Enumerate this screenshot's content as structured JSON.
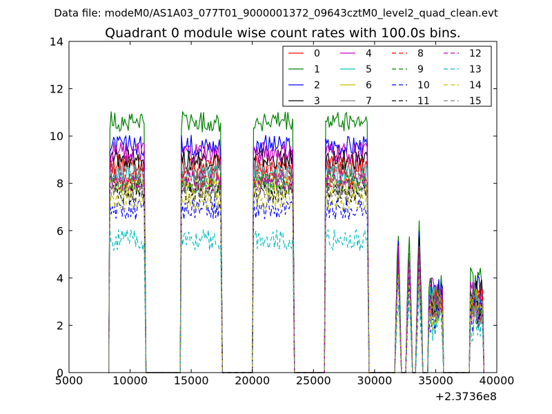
{
  "suptitle": "Data file: modeM0/AS1A03_077T01_9000001372_09643cztM0_level2_quad_clean.evt",
  "chart_data": {
    "type": "line",
    "title": "Quadrant 0 module wise count rates with 100.0s bins.",
    "xlabel": "",
    "ylabel": "",
    "x_offset_label": "+2.3736e8",
    "xlim": [
      5000,
      40000
    ],
    "ylim": [
      0,
      14
    ],
    "xticks": [
      5000,
      10000,
      15000,
      20000,
      25000,
      30000,
      35000,
      40000
    ],
    "xtick_labels": [
      "5000",
      "10000",
      "15000",
      "20000",
      "25000",
      "30000",
      "35000",
      "40000"
    ],
    "yticks": [
      0,
      2,
      4,
      6,
      8,
      10,
      12,
      14
    ],
    "ytick_labels": [
      "0",
      "2",
      "4",
      "6",
      "8",
      "10",
      "12",
      "14"
    ],
    "grid": false,
    "legend_position": "top-right",
    "legend_columns": 4,
    "observation_segments_x": [
      [
        8350,
        11200
      ],
      [
        14200,
        17450
      ],
      [
        20100,
        23350
      ],
      [
        26000,
        29450
      ],
      [
        31750,
        32100
      ],
      [
        32650,
        33000
      ],
      [
        33450,
        33850
      ],
      [
        34450,
        35550
      ],
      [
        37850,
        38850
      ]
    ],
    "series": [
      {
        "name": "0",
        "level": 8.8,
        "color": "#ff0000",
        "dashed": false
      },
      {
        "name": "1",
        "level": 10.6,
        "color": "#008000",
        "dashed": false
      },
      {
        "name": "2",
        "level": 9.6,
        "color": "#0000ff",
        "dashed": false
      },
      {
        "name": "3",
        "level": 9.0,
        "color": "#000000",
        "dashed": false
      },
      {
        "name": "4",
        "level": 9.3,
        "color": "#bf00bf",
        "dashed": false
      },
      {
        "name": "5",
        "level": 8.3,
        "color": "#00bfbf",
        "dashed": false
      },
      {
        "name": "6",
        "level": 7.9,
        "color": "#bfbf00",
        "dashed": false
      },
      {
        "name": "7",
        "level": 8.5,
        "color": "#808080",
        "dashed": false
      },
      {
        "name": "8",
        "level": 8.2,
        "color": "#ff0000",
        "dashed": true
      },
      {
        "name": "9",
        "level": 8.0,
        "color": "#008000",
        "dashed": true
      },
      {
        "name": "10",
        "level": 6.9,
        "color": "#0000ff",
        "dashed": true
      },
      {
        "name": "11",
        "level": 7.6,
        "color": "#000000",
        "dashed": true
      },
      {
        "name": "12",
        "level": 8.1,
        "color": "#bf00bf",
        "dashed": true
      },
      {
        "name": "13",
        "level": 5.6,
        "color": "#00bfbf",
        "dashed": true
      },
      {
        "name": "14",
        "level": 7.3,
        "color": "#bfbf00",
        "dashed": true
      },
      {
        "name": "15",
        "level": 7.8,
        "color": "#808080",
        "dashed": true
      }
    ]
  }
}
